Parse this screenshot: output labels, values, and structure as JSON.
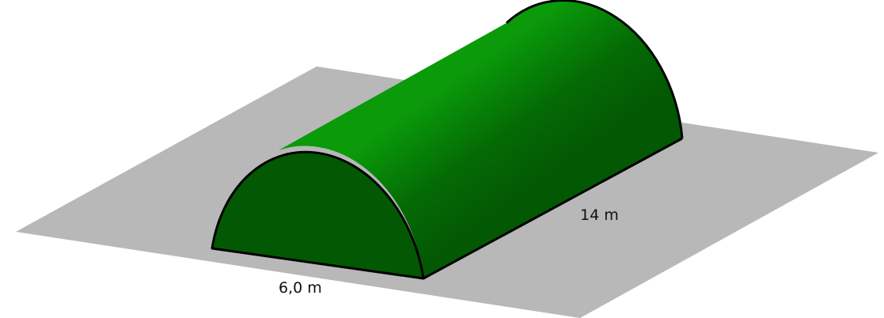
{
  "figure": {
    "colors": {
      "ground": "#b8b8b8",
      "end_face": "#035803",
      "roof_light": "#0a9a0a",
      "roof_dark": "#035803",
      "outline": "#000000"
    },
    "dimensions": {
      "width_label": "6,0 m",
      "length_label": "14 m"
    }
  }
}
